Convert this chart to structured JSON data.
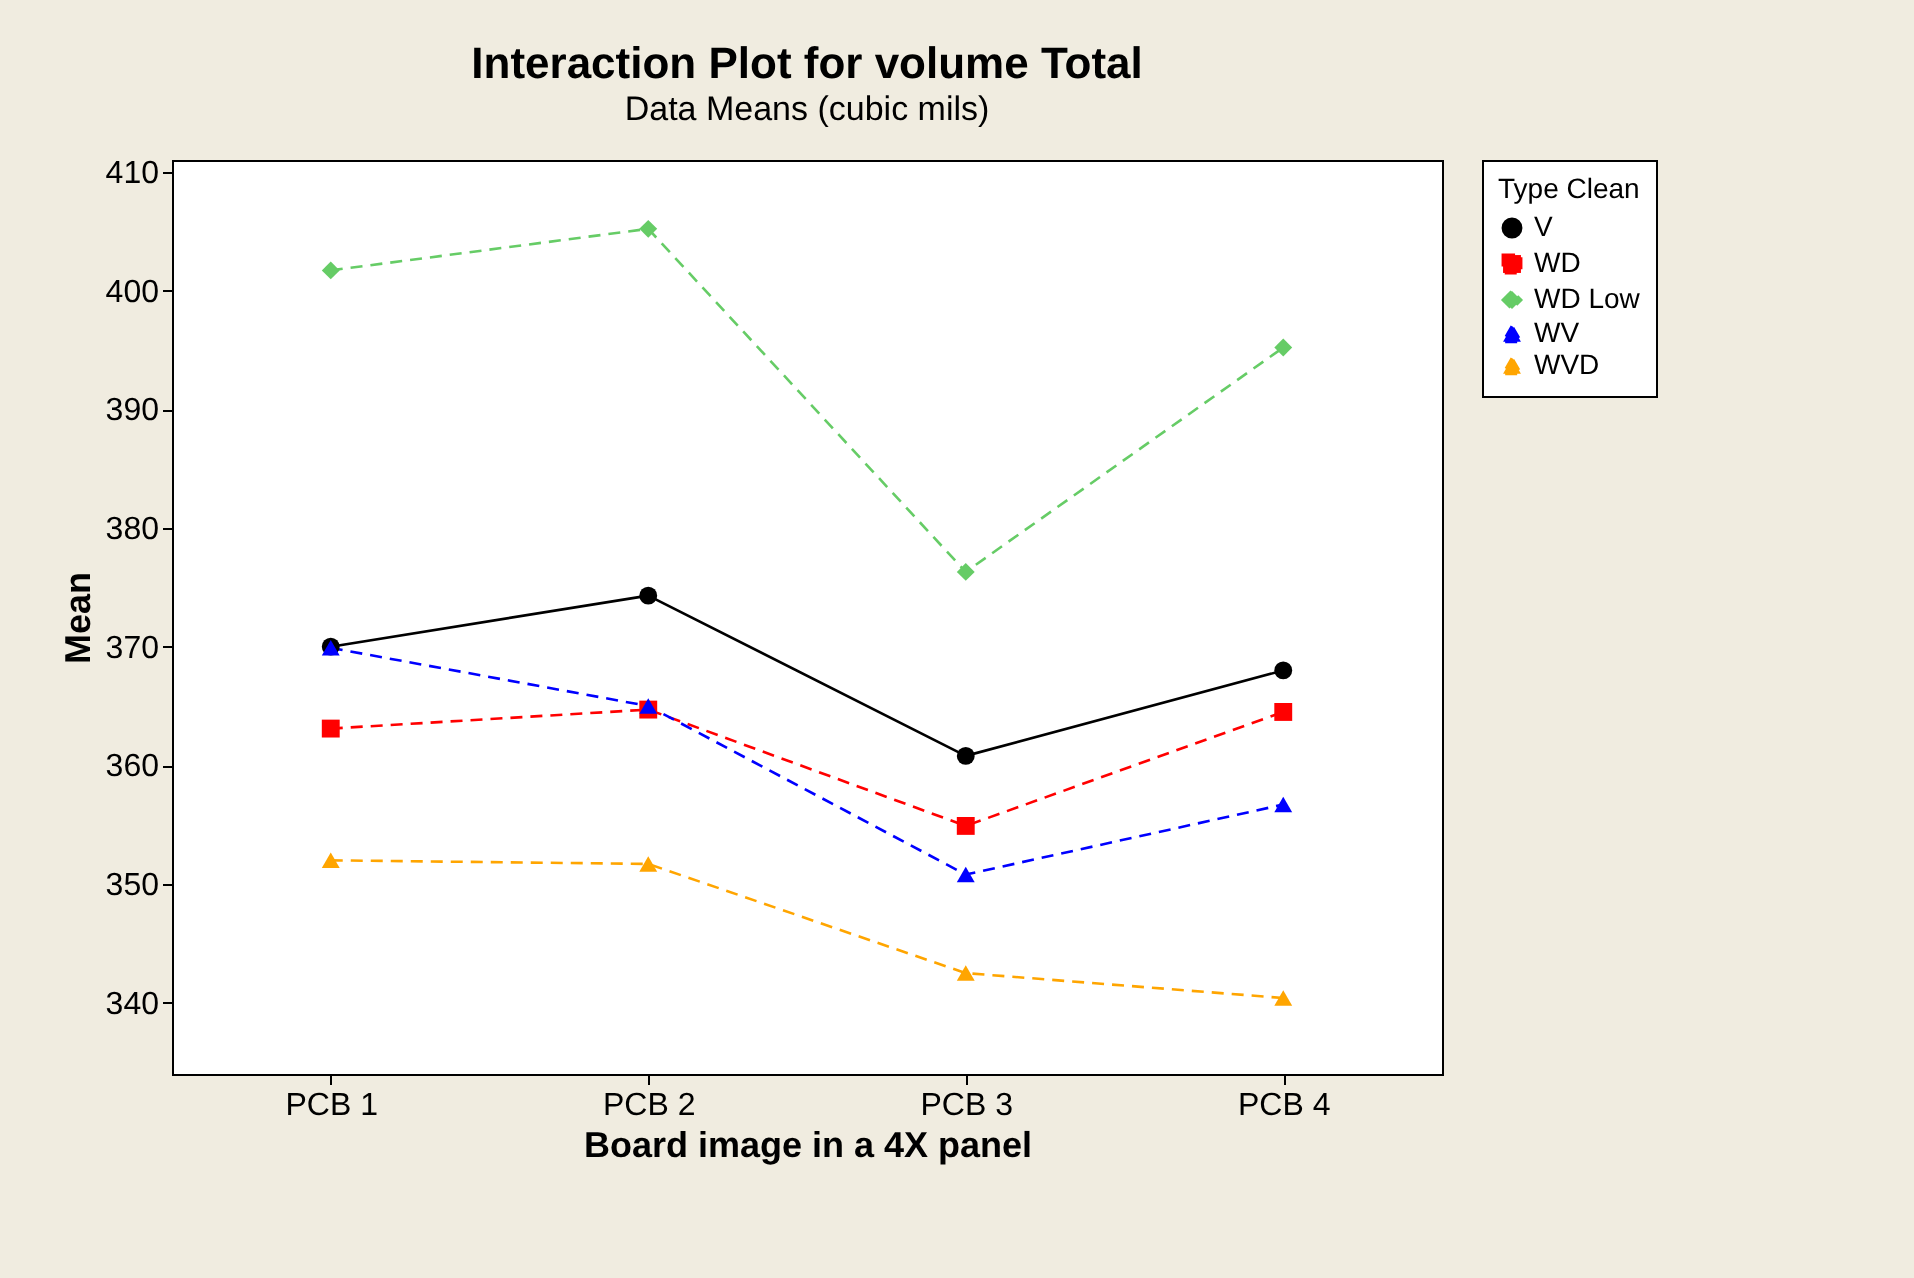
{
  "chart_data": {
    "type": "line",
    "title": "Interaction Plot for volume Total",
    "subtitle": "Data Means (cubic mils)",
    "xlabel": "Board image in a 4X panel",
    "ylabel": "Mean",
    "legend_title": "Type Clean",
    "legend": "top right",
    "grid": false,
    "categories": [
      "PCB 1",
      "PCB 2",
      "PCB 3",
      "PCB 4"
    ],
    "ylim": [
      334,
      411
    ],
    "yticks": [
      340,
      350,
      360,
      370,
      380,
      390,
      400,
      410
    ],
    "series": [
      {
        "name": "V",
        "color": "#000000",
        "marker": "circle",
        "line_style": "solid",
        "values": [
          370,
          374.3,
          360.8,
          368
        ]
      },
      {
        "name": "WD",
        "color": "#ff0000",
        "marker": "square",
        "line_style": "dashed",
        "values": [
          363.1,
          364.7,
          354.9,
          364.5
        ]
      },
      {
        "name": "WD Low",
        "color": "#66cc66",
        "marker": "diamond",
        "line_style": "dashed",
        "values": [
          401.7,
          405.2,
          376.3,
          395.2
        ]
      },
      {
        "name": "WV",
        "color": "#0000ff",
        "marker": "triangle",
        "line_style": "dashed",
        "values": [
          369.9,
          365,
          350.8,
          356.7
        ]
      },
      {
        "name": "WVD",
        "color": "#ffa500",
        "marker": "triangle",
        "line_style": "dashed",
        "values": [
          352,
          351.7,
          342.5,
          340.4
        ]
      }
    ]
  }
}
